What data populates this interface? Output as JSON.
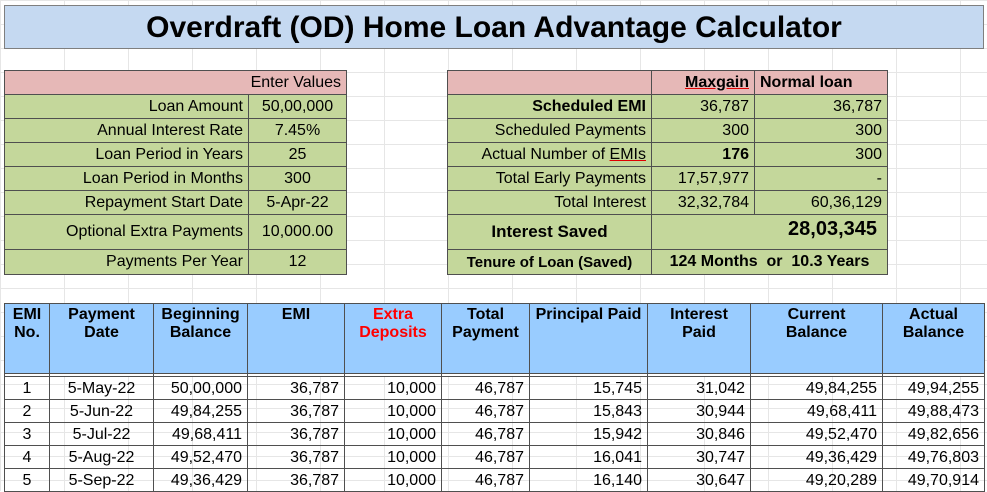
{
  "title": "Overdraft (OD) Home Loan Advantage Calculator",
  "inputs": {
    "header": "Enter Values",
    "rows": [
      {
        "label": "Loan Amount",
        "value": "50,00,000"
      },
      {
        "label": "Annual Interest Rate",
        "value": "7.45%"
      },
      {
        "label": "Loan Period in Years",
        "value": "25"
      },
      {
        "label": "Loan Period in Months",
        "value": "300"
      },
      {
        "label": "Repayment Start Date",
        "value": "5-Apr-22"
      },
      {
        "label": "Optional Extra Payments",
        "value": "10,000.00"
      },
      {
        "label": "Payments Per Year",
        "value": "12"
      }
    ]
  },
  "comparison": {
    "col_maxgain": "Maxgain",
    "col_normal": "Normal loan",
    "rows": [
      {
        "label": "Scheduled EMI",
        "maxgain": "36,787",
        "normal": "36,787"
      },
      {
        "label": "Scheduled Payments",
        "maxgain": "300",
        "normal": "300"
      },
      {
        "label_prefix": "Actual Number of ",
        "label_emph": "EMIs",
        "maxgain": "176",
        "normal": "300"
      },
      {
        "label": "Total Early Payments",
        "maxgain": "17,57,977",
        "normal": "-"
      },
      {
        "label": "Total Interest",
        "maxgain": "32,32,784",
        "normal": "60,36,129"
      }
    ],
    "interest_saved_label": "Interest Saved",
    "interest_saved_value": "28,03,345",
    "tenure_label": "Tenure of Loan (Saved)",
    "tenure_value": "124 Months  or  10.3 Years"
  },
  "schedule": {
    "headers": [
      "EMI No.",
      "Payment Date",
      "Beginning Balance",
      "EMI",
      "Extra Deposits",
      "Total Payment",
      "Principal Paid",
      "Interest Paid",
      "Current Balance",
      "Actual Balance"
    ],
    "rows": [
      [
        "1",
        "5-May-22",
        "50,00,000",
        "36,787",
        "10,000",
        "46,787",
        "15,745",
        "31,042",
        "49,84,255",
        "49,94,255"
      ],
      [
        "2",
        "5-Jun-22",
        "49,84,255",
        "36,787",
        "10,000",
        "46,787",
        "15,843",
        "30,944",
        "49,68,411",
        "49,88,473"
      ],
      [
        "3",
        "5-Jul-22",
        "49,68,411",
        "36,787",
        "10,000",
        "46,787",
        "15,942",
        "30,846",
        "49,52,470",
        "49,82,656"
      ],
      [
        "4",
        "5-Aug-22",
        "49,52,470",
        "36,787",
        "10,000",
        "46,787",
        "16,041",
        "30,747",
        "49,36,429",
        "49,76,803"
      ],
      [
        "5",
        "5-Sep-22",
        "49,36,429",
        "36,787",
        "10,000",
        "46,787",
        "16,140",
        "30,647",
        "49,20,289",
        "49,70,914"
      ]
    ]
  }
}
